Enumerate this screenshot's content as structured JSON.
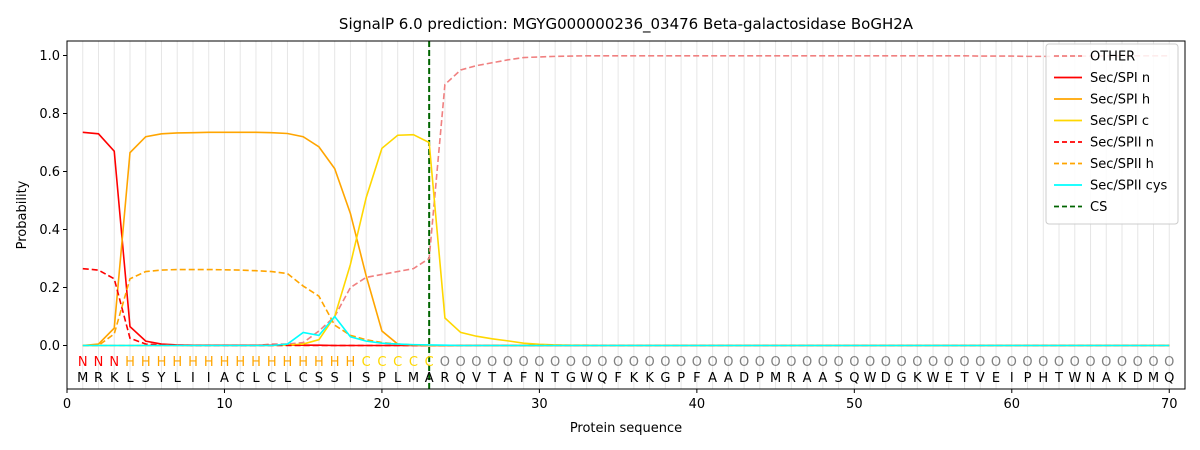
{
  "chart_data": {
    "type": "line",
    "title": "SignalP 6.0 prediction: MGYG000000236_03476 Beta-galactosidase BoGH2A",
    "xlabel": "Protein sequence",
    "ylabel": "Probability",
    "xlim": [
      0,
      71
    ],
    "ylim": [
      -0.15,
      1.05
    ],
    "x_ticks": [
      0,
      10,
      20,
      30,
      40,
      50,
      60,
      70
    ],
    "y_ticks": [
      0.0,
      0.2,
      0.4,
      0.6,
      0.8,
      1.0
    ],
    "x_tick_labels": [
      "0",
      "10",
      "20",
      "30",
      "40",
      "50",
      "60",
      "70"
    ],
    "y_tick_labels": [
      "0.0",
      "0.2",
      "0.4",
      "0.6",
      "0.8",
      "1.0"
    ],
    "grid": "vertical at each residue",
    "legend_position": "top-right",
    "sequence": [
      "M",
      "R",
      "K",
      "L",
      "S",
      "Y",
      "L",
      "I",
      "I",
      "A",
      "C",
      "L",
      "C",
      "L",
      "C",
      "S",
      "S",
      "I",
      "S",
      "P",
      "L",
      "M",
      "A",
      "R",
      "Q",
      "V",
      "T",
      "A",
      "F",
      "N",
      "T",
      "G",
      "W",
      "Q",
      "F",
      "K",
      "K",
      "G",
      "P",
      "F",
      "A",
      "A",
      "D",
      "P",
      "M",
      "R",
      "A",
      "A",
      "S",
      "Q",
      "W",
      "D",
      "G",
      "K",
      "W",
      "E",
      "T",
      "V",
      "E",
      "I",
      "P",
      "H",
      "T",
      "W",
      "N",
      "A",
      "K",
      "D",
      "M",
      "Q"
    ],
    "region_labels": [
      "N",
      "N",
      "N",
      "H",
      "H",
      "H",
      "H",
      "H",
      "H",
      "H",
      "H",
      "H",
      "H",
      "H",
      "H",
      "H",
      "H",
      "H",
      "C",
      "C",
      "C",
      "C",
      "C",
      "O",
      "O",
      "O",
      "O",
      "O",
      "O",
      "O",
      "O",
      "O",
      "O",
      "O",
      "O",
      "O",
      "O",
      "O",
      "O",
      "O",
      "O",
      "O",
      "O",
      "O",
      "O",
      "O",
      "O",
      "O",
      "O",
      "O",
      "O",
      "O",
      "O",
      "O",
      "O",
      "O",
      "O",
      "O",
      "O",
      "O",
      "O",
      "O",
      "O",
      "O",
      "O",
      "O",
      "O",
      "O",
      "O",
      "O"
    ],
    "region_colors": {
      "N": "#ff0000",
      "H": "#ffa500",
      "C": "#ffd700",
      "O": "#808080"
    },
    "cleavage_site": 23,
    "cs_color": "#006400",
    "series": [
      {
        "name": "OTHER",
        "color": "#f08080",
        "dash": "dashed",
        "values": [
          0.0,
          0.0,
          0.0,
          0.0,
          0.0,
          0.0,
          0.0,
          0.0,
          0.0,
          0.0,
          0.0,
          0.0,
          0.005,
          0.005,
          0.01,
          0.05,
          0.1,
          0.2,
          0.235,
          0.245,
          0.255,
          0.265,
          0.3,
          0.9,
          0.95,
          0.965,
          0.975,
          0.985,
          0.993,
          0.995,
          0.997,
          0.998,
          0.999,
          0.999,
          0.999,
          0.999,
          0.999,
          0.999,
          0.999,
          0.999,
          0.999,
          0.999,
          0.999,
          0.999,
          0.999,
          0.999,
          0.999,
          0.999,
          0.999,
          0.999,
          0.999,
          0.999,
          0.999,
          0.999,
          0.999,
          0.999,
          0.999,
          0.998,
          0.998,
          0.998,
          0.997,
          0.997,
          0.997,
          0.998,
          0.998,
          0.999,
          0.999,
          0.999,
          0.999,
          0.999
        ]
      },
      {
        "name": "Sec/SPI n",
        "color": "#ff0000",
        "dash": "solid",
        "values": [
          0.735,
          0.73,
          0.67,
          0.065,
          0.015,
          0.005,
          0.002,
          0.001,
          0.001,
          0.001,
          0.001,
          0.001,
          0.001,
          0.001,
          0.001,
          0.001,
          0.0,
          0.0,
          0.0,
          0.0,
          0.0,
          0.0,
          0.0,
          0.0,
          0.0,
          0.0,
          0.0,
          0.0,
          0.0,
          0.0,
          0.0,
          0.0,
          0.0,
          0.0,
          0.0,
          0.0,
          0.0,
          0.0,
          0.0,
          0.0,
          0.0,
          0.0,
          0.0,
          0.0,
          0.0,
          0.0,
          0.0,
          0.0,
          0.0,
          0.0,
          0.0,
          0.0,
          0.0,
          0.0,
          0.0,
          0.0,
          0.0,
          0.0,
          0.0,
          0.0,
          0.0,
          0.0,
          0.0,
          0.0,
          0.0,
          0.0,
          0.0,
          0.0,
          0.0,
          0.0
        ]
      },
      {
        "name": "Sec/SPI h",
        "color": "#ffa500",
        "dash": "solid",
        "values": [
          0.0,
          0.005,
          0.06,
          0.665,
          0.72,
          0.73,
          0.733,
          0.734,
          0.735,
          0.735,
          0.735,
          0.735,
          0.734,
          0.731,
          0.72,
          0.685,
          0.61,
          0.455,
          0.24,
          0.05,
          0.005,
          0.001,
          0.0,
          0.0,
          0.0,
          0.0,
          0.0,
          0.0,
          0.0,
          0.0,
          0.0,
          0.0,
          0.0,
          0.0,
          0.0,
          0.0,
          0.0,
          0.0,
          0.0,
          0.0,
          0.0,
          0.0,
          0.0,
          0.0,
          0.0,
          0.0,
          0.0,
          0.0,
          0.0,
          0.0,
          0.0,
          0.0,
          0.0,
          0.0,
          0.0,
          0.0,
          0.0,
          0.0,
          0.0,
          0.0,
          0.0,
          0.0,
          0.0,
          0.0,
          0.0,
          0.0,
          0.0,
          0.0,
          0.0,
          0.0
        ]
      },
      {
        "name": "Sec/SPI c",
        "color": "#ffd700",
        "dash": "solid",
        "values": [
          0.0,
          0.0,
          0.0,
          0.0,
          0.0,
          0.0,
          0.0,
          0.0,
          0.0,
          0.0,
          0.0,
          0.0,
          0.0,
          0.001,
          0.005,
          0.02,
          0.1,
          0.28,
          0.51,
          0.68,
          0.725,
          0.727,
          0.7,
          0.095,
          0.045,
          0.032,
          0.023,
          0.016,
          0.008,
          0.004,
          0.002,
          0.001,
          0.001,
          0.0,
          0.0,
          0.0,
          0.0,
          0.0,
          0.0,
          0.0,
          0.0,
          0.0,
          0.0,
          0.0,
          0.0,
          0.0,
          0.0,
          0.0,
          0.0,
          0.0,
          0.0,
          0.0,
          0.0,
          0.0,
          0.0,
          0.0,
          0.0,
          0.0,
          0.0,
          0.0,
          0.0,
          0.0,
          0.0,
          0.0,
          0.0,
          0.0,
          0.0,
          0.0,
          0.0,
          0.0
        ]
      },
      {
        "name": "Sec/SPII n",
        "color": "#ff0000",
        "dash": "dashed",
        "values": [
          0.265,
          0.26,
          0.23,
          0.025,
          0.005,
          0.002,
          0.001,
          0.0,
          0.0,
          0.0,
          0.0,
          0.0,
          0.0,
          0.0,
          0.0,
          0.0,
          0.0,
          0.0,
          0.0,
          0.0,
          0.0,
          0.0,
          0.0,
          0.0,
          0.0,
          0.0,
          0.0,
          0.0,
          0.0,
          0.0,
          0.0,
          0.0,
          0.0,
          0.0,
          0.0,
          0.0,
          0.0,
          0.0,
          0.0,
          0.0,
          0.0,
          0.0,
          0.0,
          0.0,
          0.0,
          0.0,
          0.0,
          0.0,
          0.0,
          0.0,
          0.0,
          0.0,
          0.0,
          0.0,
          0.0,
          0.0,
          0.0,
          0.0,
          0.0,
          0.0,
          0.0,
          0.0,
          0.0,
          0.0,
          0.0,
          0.0,
          0.0,
          0.0,
          0.0,
          0.0
        ]
      },
      {
        "name": "Sec/SPII h",
        "color": "#ffa500",
        "dash": "dashed",
        "values": [
          0.0,
          0.0,
          0.04,
          0.23,
          0.255,
          0.26,
          0.262,
          0.262,
          0.262,
          0.261,
          0.26,
          0.258,
          0.255,
          0.248,
          0.205,
          0.17,
          0.07,
          0.035,
          0.02,
          0.01,
          0.005,
          0.002,
          0.0,
          0.0,
          0.0,
          0.0,
          0.0,
          0.0,
          0.0,
          0.0,
          0.0,
          0.0,
          0.0,
          0.0,
          0.0,
          0.0,
          0.0,
          0.0,
          0.0,
          0.0,
          0.0,
          0.0,
          0.0,
          0.0,
          0.0,
          0.0,
          0.0,
          0.0,
          0.0,
          0.0,
          0.0,
          0.0,
          0.0,
          0.0,
          0.0,
          0.0,
          0.0,
          0.0,
          0.0,
          0.0,
          0.0,
          0.0,
          0.0,
          0.0,
          0.0,
          0.0,
          0.0,
          0.0,
          0.0,
          0.0
        ]
      },
      {
        "name": "Sec/SPII cys",
        "color": "#00ffff",
        "dash": "solid",
        "values": [
          0.0,
          0.0,
          0.0,
          0.0,
          0.0,
          0.0,
          0.0,
          0.0,
          0.0,
          0.0,
          0.0,
          0.0,
          0.0,
          0.005,
          0.045,
          0.035,
          0.1,
          0.03,
          0.015,
          0.008,
          0.005,
          0.003,
          0.002,
          0.001,
          0.0,
          0.0,
          0.0,
          0.0,
          0.0,
          0.0,
          0.0,
          0.0,
          0.0,
          0.0,
          0.0,
          0.0,
          0.0,
          0.0,
          0.0,
          0.0,
          0.0,
          0.0,
          0.0,
          0.0,
          0.0,
          0.0,
          0.0,
          0.0,
          0.0,
          0.0,
          0.0,
          0.0,
          0.0,
          0.0,
          0.0,
          0.0,
          0.0,
          0.0,
          0.0,
          0.0,
          0.0,
          0.0,
          0.0,
          0.0,
          0.0,
          0.0,
          0.0,
          0.0,
          0.0,
          0.0
        ]
      }
    ],
    "legend": [
      {
        "name": "OTHER",
        "color": "#f08080",
        "dash": "dashed"
      },
      {
        "name": "Sec/SPI n",
        "color": "#ff0000",
        "dash": "solid"
      },
      {
        "name": "Sec/SPI h",
        "color": "#ffa500",
        "dash": "solid"
      },
      {
        "name": "Sec/SPI c",
        "color": "#ffd700",
        "dash": "solid"
      },
      {
        "name": "Sec/SPII n",
        "color": "#ff0000",
        "dash": "dashed"
      },
      {
        "name": "Sec/SPII h",
        "color": "#ffa500",
        "dash": "dashed"
      },
      {
        "name": "Sec/SPII cys",
        "color": "#00ffff",
        "dash": "solid"
      },
      {
        "name": "CS",
        "color": "#006400",
        "dash": "dashed"
      }
    ]
  }
}
